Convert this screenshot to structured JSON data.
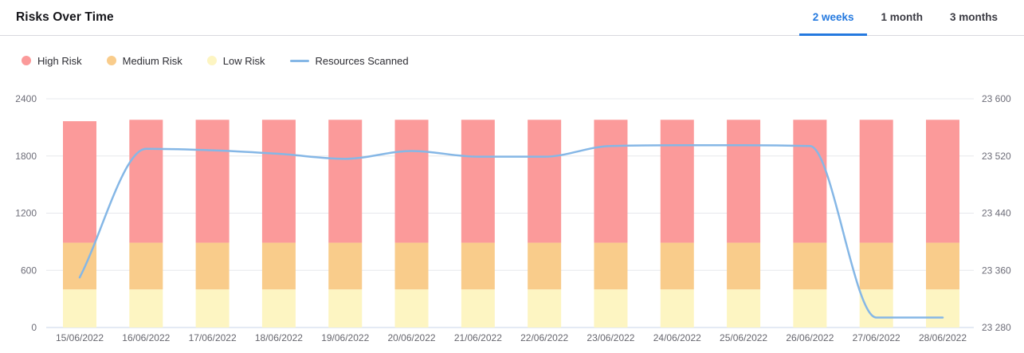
{
  "header": {
    "title": "Risks Over Time"
  },
  "tabs": {
    "active_color": "#2479df",
    "items": [
      {
        "label": "2 weeks",
        "active": true
      },
      {
        "label": "1 month",
        "active": false
      },
      {
        "label": "3 months",
        "active": false
      }
    ]
  },
  "chart_data": {
    "type": "bar",
    "subtype": "stacked-column-with-line",
    "title": "Risks Over Time",
    "grid": "horizontal",
    "legend_position": "top-left",
    "categories": [
      "15/06/2022",
      "16/06/2022",
      "17/06/2022",
      "18/06/2022",
      "19/06/2022",
      "20/06/2022",
      "21/06/2022",
      "22/06/2022",
      "23/06/2022",
      "24/06/2022",
      "25/06/2022",
      "26/06/2022",
      "27/06/2022",
      "28/06/2022"
    ],
    "series": [
      {
        "name": "High Risk",
        "type": "bar",
        "color": "#fb9a9a",
        "values": [
          1275,
          1290,
          1290,
          1290,
          1290,
          1290,
          1290,
          1290,
          1290,
          1290,
          1290,
          1290,
          1290,
          1290
        ]
      },
      {
        "name": "Medium Risk",
        "type": "bar",
        "color": "#f9cc8b",
        "values": [
          490,
          490,
          490,
          490,
          490,
          490,
          490,
          490,
          490,
          490,
          490,
          490,
          490,
          490
        ]
      },
      {
        "name": "Low Risk",
        "type": "bar",
        "color": "#fdf5c2",
        "values": [
          400,
          400,
          400,
          400,
          400,
          400,
          400,
          400,
          400,
          400,
          400,
          400,
          400,
          400
        ]
      },
      {
        "name": "Resources Scanned",
        "type": "line",
        "y_axis": "right",
        "color": "#85b7e6",
        "values": [
          23350,
          23530,
          23528,
          23523,
          23516,
          23527,
          23519,
          23519,
          23534,
          23535,
          23535,
          23534,
          23294,
          23294
        ]
      }
    ],
    "left_axis": {
      "range": [
        0,
        2400
      ],
      "ticks": [
        0,
        600,
        1200,
        1800,
        2400
      ],
      "tick_labels": [
        "0",
        "600",
        "1200",
        "1800",
        "2400"
      ]
    },
    "right_axis": {
      "range": [
        23280,
        23600
      ],
      "ticks": [
        23280,
        23360,
        23440,
        23520,
        23600
      ],
      "tick_labels": [
        "23 280",
        "23 360",
        "23 440",
        "23 520",
        "23 600"
      ]
    },
    "colors": {
      "grid": "#e7e8ec",
      "axis_line": "#c9d4e8",
      "axis_text": "#6d6d78"
    }
  }
}
